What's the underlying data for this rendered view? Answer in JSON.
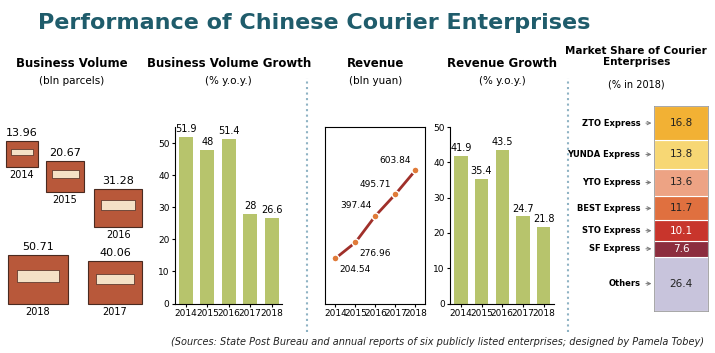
{
  "title": "Performance of Chinese Courier Enterprises",
  "source": "(Sources: State Post Bureau and annual reports of six publicly listed enterprises; designed by Pamela Tobey)",
  "chart_data": [
    {
      "type": "pictogram",
      "title": "Business Volume",
      "subtitle": "(bln parcels)",
      "categories": [
        "2014",
        "2015",
        "2016",
        "2017",
        "2018"
      ],
      "values": [
        13.96,
        20.67,
        31.28,
        40.06,
        50.71
      ],
      "color": "#b8583a",
      "data_labels": true,
      "tick_labels": false
    },
    {
      "type": "bar",
      "title": "Business Volume Growth",
      "subtitle": "(% y.o.y.)",
      "categories": [
        "2014",
        "2015",
        "2016",
        "2017",
        "2018"
      ],
      "values": [
        51.9,
        48,
        51.4,
        28,
        26.6
      ],
      "color": "#b7c46c",
      "ylim": [
        0,
        55
      ],
      "yticks": [
        0,
        10,
        20,
        30,
        40,
        50
      ],
      "grid": false,
      "data_labels": true
    },
    {
      "type": "line",
      "title": "Revenue",
      "subtitle": "(bln yuan)",
      "categories": [
        "2014",
        "2015",
        "2016",
        "2017",
        "2018"
      ],
      "values": [
        204.54,
        276.96,
        397.44,
        495.71,
        603.84
      ],
      "color": "#a0302a",
      "marker": "o",
      "ylim": [
        0,
        800
      ],
      "tick_labels": "x",
      "grid": false,
      "data_labels": true
    },
    {
      "type": "bar",
      "title": "Revenue Growth",
      "subtitle": "(% y.o.y.)",
      "categories": [
        "2014",
        "2015",
        "2016",
        "2017",
        "2018"
      ],
      "values": [
        41.9,
        35.4,
        43.5,
        24.7,
        21.8
      ],
      "color": "#b7c46c",
      "ylim": [
        0,
        50
      ],
      "yticks": [
        0,
        10,
        20,
        30,
        40,
        50
      ],
      "grid": false,
      "data_labels": true
    },
    {
      "type": "bar",
      "stacked": true,
      "title": "Market Share of Courier Enterprises",
      "subtitle": "(% in 2018)",
      "categories": [
        null
      ],
      "series": [
        {
          "name": "ZTO Express",
          "color": "#f2b134",
          "values": [
            16.8
          ]
        },
        {
          "name": "YUNDA Express",
          "color": "#f7d774",
          "values": [
            13.8
          ]
        },
        {
          "name": "YTO Express",
          "color": "#eda384",
          "values": [
            13.6
          ]
        },
        {
          "name": "BEST Express",
          "color": "#e0703f",
          "values": [
            11.7
          ]
        },
        {
          "name": "STO Express",
          "color": "#c8352c",
          "values": [
            10.1
          ]
        },
        {
          "name": "SF Express",
          "color": "#8c2d3e",
          "values": [
            7.6
          ]
        },
        {
          "name": "Others",
          "color": "#c8c4dc",
          "values": [
            26.4
          ]
        }
      ],
      "ylim": [
        0,
        100
      ],
      "data_labels": true,
      "tick_labels": false
    }
  ]
}
